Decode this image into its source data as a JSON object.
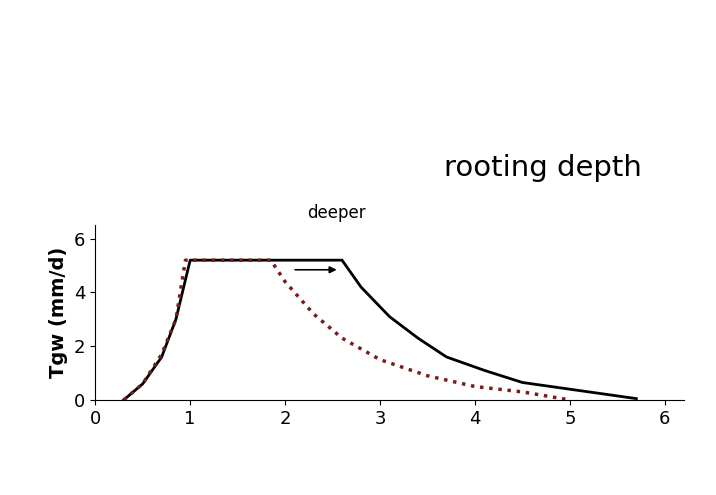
{
  "chart_data": {
    "type": "line",
    "ylabel": "Tgw (mm/d)",
    "annotations": [
      "deeper",
      "rooting depth"
    ],
    "xlim": [
      0,
      6.2
    ],
    "xticks": [
      0,
      1,
      2,
      3,
      4,
      5,
      6
    ],
    "ylim": [
      0,
      6.5
    ],
    "yticks": [
      0,
      2,
      4,
      6
    ],
    "grid": false,
    "series": [
      {
        "color": "#000000",
        "line_style": "solid",
        "x": [
          0.3,
          0.5,
          0.7,
          0.85,
          1.0,
          2.6,
          2.8,
          3.1,
          3.4,
          3.7,
          4.1,
          4.5,
          5.0,
          5.7
        ],
        "values": [
          0,
          0.6,
          1.6,
          3.0,
          5.2,
          5.2,
          4.2,
          3.1,
          2.3,
          1.6,
          1.1,
          0.65,
          0.4,
          0.05
        ]
      },
      {
        "color": "#7b1c1c",
        "line_style": "dotted",
        "x": [
          0.3,
          0.5,
          0.7,
          0.85,
          0.95,
          1.85,
          2.0,
          2.3,
          2.6,
          3.0,
          3.5,
          4.0,
          4.5,
          5.0
        ],
        "values": [
          0,
          0.6,
          1.7,
          3.0,
          5.2,
          5.2,
          4.4,
          3.2,
          2.3,
          1.5,
          0.9,
          0.5,
          0.3,
          0
        ]
      }
    ]
  }
}
